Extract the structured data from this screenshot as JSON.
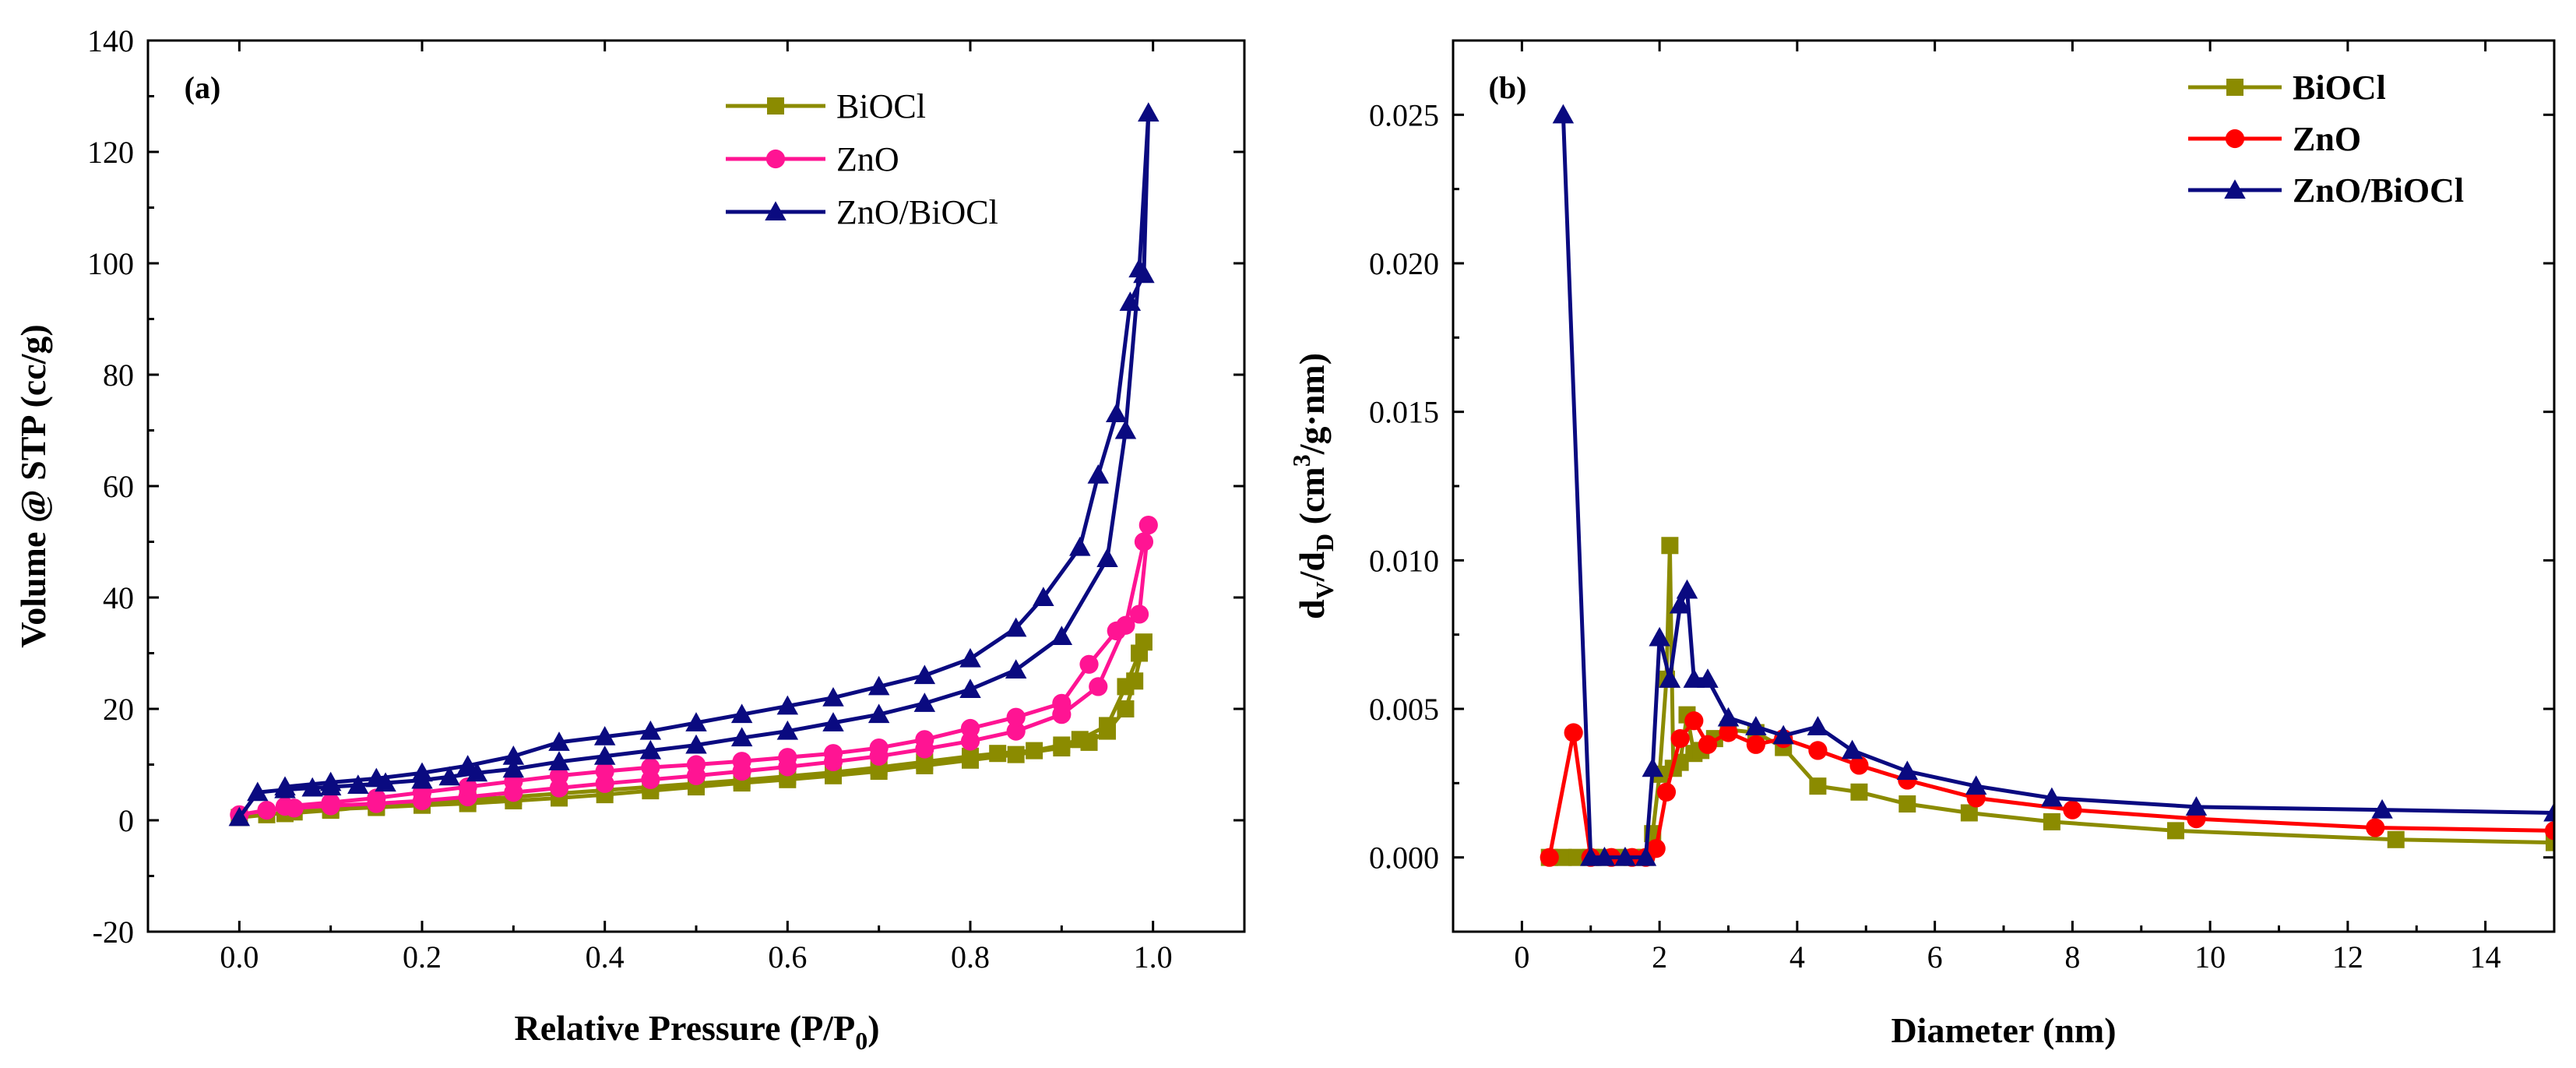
{
  "chart_data": [
    {
      "type": "line",
      "panel_label": "(a)",
      "xlabel": "Relative Pressure (P/P",
      "xlabel_sub": "0",
      "xlabel_end": ")",
      "ylabel": "Volume @ STP (cc/g)",
      "xlim": [
        -0.1,
        1.1
      ],
      "ylim": [
        -20,
        140
      ],
      "xticks": [
        0.0,
        0.2,
        0.4,
        0.6,
        0.8,
        1.0
      ],
      "xtick_labels": [
        "0.0",
        "0.2",
        "0.4",
        "0.6",
        "0.8",
        "1.0"
      ],
      "yticks": [
        -20,
        0,
        20,
        40,
        60,
        80,
        100,
        120,
        140
      ],
      "ytick_labels": [
        "-20",
        "0",
        "20",
        "40",
        "60",
        "80",
        "100",
        "120",
        "140"
      ],
      "legend_position": "top-right",
      "series": [
        {
          "name": "BiOCl",
          "color": "#8B8B00",
          "marker": "square",
          "x": [
            0.0,
            0.03,
            0.06,
            0.1,
            0.15,
            0.2,
            0.25,
            0.3,
            0.35,
            0.4,
            0.45,
            0.5,
            0.55,
            0.6,
            0.65,
            0.7,
            0.75,
            0.8,
            0.85,
            0.9,
            0.93,
            0.95,
            0.97,
            0.98,
            0.99,
            0.985,
            0.97,
            0.95,
            0.92,
            0.9,
            0.87,
            0.83,
            0.8,
            0.75,
            0.7,
            0.65,
            0.6,
            0.55,
            0.5,
            0.45,
            0.4,
            0.35,
            0.3,
            0.25,
            0.2,
            0.15,
            0.1,
            0.05
          ],
          "y": [
            0.5,
            1.0,
            1.5,
            2.0,
            2.3,
            2.7,
            3.0,
            3.5,
            4.0,
            4.6,
            5.3,
            6.0,
            6.7,
            7.3,
            8.0,
            8.8,
            9.8,
            10.8,
            11.8,
            13.0,
            14.0,
            16.0,
            20.0,
            25.0,
            32.0,
            30.0,
            24.0,
            17.0,
            14.5,
            13.5,
            12.5,
            12.0,
            11.5,
            10.5,
            9.5,
            8.6,
            7.9,
            7.2,
            6.6,
            6.0,
            5.4,
            4.8,
            4.2,
            3.7,
            3.1,
            2.5,
            1.8,
            1.2
          ]
        },
        {
          "name": "ZnO",
          "color": "#FF1493",
          "marker": "circle",
          "x": [
            0.0,
            0.03,
            0.06,
            0.1,
            0.15,
            0.2,
            0.25,
            0.3,
            0.35,
            0.4,
            0.45,
            0.5,
            0.55,
            0.6,
            0.65,
            0.7,
            0.75,
            0.8,
            0.85,
            0.9,
            0.94,
            0.97,
            0.99,
            0.995,
            0.985,
            0.96,
            0.93,
            0.9,
            0.85,
            0.8,
            0.75,
            0.7,
            0.65,
            0.6,
            0.55,
            0.5,
            0.45,
            0.4,
            0.35,
            0.3,
            0.25,
            0.2,
            0.15,
            0.1,
            0.05
          ],
          "y": [
            1.0,
            1.8,
            2.2,
            2.6,
            3.0,
            3.5,
            4.2,
            5.0,
            5.8,
            6.6,
            7.3,
            8.0,
            8.8,
            9.6,
            10.5,
            11.5,
            12.8,
            14.2,
            16.0,
            19.0,
            24.0,
            35.0,
            50.0,
            53.0,
            37.0,
            34.0,
            28.0,
            21.0,
            18.5,
            16.5,
            14.5,
            13.0,
            12.0,
            11.3,
            10.6,
            10.0,
            9.5,
            8.8,
            8.0,
            7.0,
            6.0,
            5.0,
            4.0,
            3.2,
            2.5
          ]
        },
        {
          "name": "ZnO/BiOCl",
          "color": "#0A0A80",
          "marker": "triangle",
          "x": [
            0.0,
            0.02,
            0.05,
            0.08,
            0.1,
            0.13,
            0.16,
            0.2,
            0.23,
            0.26,
            0.3,
            0.35,
            0.4,
            0.45,
            0.5,
            0.55,
            0.6,
            0.65,
            0.7,
            0.75,
            0.8,
            0.85,
            0.9,
            0.95,
            0.97,
            0.985,
            0.995,
            0.99,
            0.975,
            0.96,
            0.94,
            0.92,
            0.88,
            0.85,
            0.8,
            0.75,
            0.7,
            0.65,
            0.6,
            0.55,
            0.5,
            0.45,
            0.4,
            0.35,
            0.3,
            0.25,
            0.2,
            0.15,
            0.1,
            0.05
          ],
          "y": [
            0.5,
            5.0,
            5.5,
            5.8,
            6.0,
            6.3,
            6.7,
            7.2,
            7.8,
            8.5,
            9.2,
            10.5,
            11.5,
            12.5,
            13.5,
            14.8,
            16.0,
            17.5,
            19.0,
            21.0,
            23.5,
            27.0,
            33.0,
            47.0,
            70.0,
            99.0,
            127.0,
            98.0,
            93.0,
            73.0,
            62.0,
            49.0,
            40.0,
            34.5,
            29.0,
            26.0,
            24.0,
            22.0,
            20.5,
            19.0,
            17.5,
            16.0,
            15.0,
            14.0,
            11.5,
            9.8,
            8.5,
            7.5,
            6.8,
            6.0
          ]
        }
      ]
    },
    {
      "type": "line",
      "panel_label": "(b)",
      "xlabel": "Diameter (nm)",
      "ylabel_parts": [
        "d",
        "V",
        "/d",
        "D",
        " (cm",
        "3",
        "/g·nm)"
      ],
      "xlim": [
        -1.0,
        15.0
      ],
      "ylim": [
        -0.0025,
        0.0275
      ],
      "xticks": [
        0,
        2,
        4,
        6,
        8,
        10,
        12,
        14
      ],
      "xtick_labels": [
        "0",
        "2",
        "4",
        "6",
        "8",
        "10",
        "12",
        "14"
      ],
      "yticks": [
        0.0,
        0.005,
        0.01,
        0.015,
        0.02,
        0.025
      ],
      "ytick_labels": [
        "0.000",
        "0.005",
        "0.010",
        "0.015",
        "0.020",
        "0.025"
      ],
      "legend_position": "top-right",
      "series": [
        {
          "name": "BiOCl",
          "color": "#8B8B00",
          "marker": "square",
          "x": [
            0.4,
            0.6,
            0.8,
            1.0,
            1.2,
            1.4,
            1.6,
            1.8,
            1.9,
            2.0,
            2.1,
            2.15,
            2.2,
            2.3,
            2.4,
            2.5,
            2.6,
            2.8,
            3.0,
            3.4,
            3.8,
            4.3,
            4.9,
            5.6,
            6.5,
            7.7,
            9.5,
            12.7,
            15.0
          ],
          "y": [
            0.0,
            0.0,
            0.0,
            0.0,
            0.0,
            0.0,
            0.0,
            0.0,
            0.0008,
            0.0028,
            0.006,
            0.0105,
            0.003,
            0.0032,
            0.0048,
            0.0035,
            0.0036,
            0.004,
            0.0043,
            0.0042,
            0.0037,
            0.0024,
            0.0022,
            0.0018,
            0.0015,
            0.0012,
            0.0009,
            0.0006,
            0.0005
          ]
        },
        {
          "name": "ZnO",
          "color": "#FF0000",
          "marker": "circle",
          "x": [
            0.4,
            0.75,
            1.0,
            1.3,
            1.6,
            1.8,
            1.95,
            2.1,
            2.3,
            2.5,
            2.7,
            3.0,
            3.4,
            3.8,
            4.3,
            4.9,
            5.6,
            6.6,
            8.0,
            9.8,
            12.4,
            15.0
          ],
          "y": [
            0.0,
            0.0042,
            0.0,
            0.0,
            0.0,
            0.0,
            0.0003,
            0.0022,
            0.004,
            0.0046,
            0.0038,
            0.0042,
            0.0038,
            0.004,
            0.0036,
            0.0031,
            0.0026,
            0.002,
            0.0016,
            0.0013,
            0.001,
            0.0009
          ]
        },
        {
          "name": "ZnO/BiOCl",
          "color": "#0A0A80",
          "marker": "triangle",
          "x": [
            0.6,
            1.0,
            1.2,
            1.5,
            1.8,
            1.9,
            2.0,
            2.15,
            2.3,
            2.4,
            2.5,
            2.7,
            3.0,
            3.4,
            3.8,
            4.3,
            4.8,
            5.6,
            6.6,
            7.7,
            9.8,
            12.5,
            15.0
          ],
          "y": [
            0.025,
            0.0,
            0.0,
            0.0,
            0.0,
            0.003,
            0.0074,
            0.006,
            0.0085,
            0.009,
            0.006,
            0.006,
            0.0047,
            0.0044,
            0.0041,
            0.0044,
            0.0036,
            0.0029,
            0.0024,
            0.002,
            0.0017,
            0.0016,
            0.0015
          ]
        }
      ]
    }
  ]
}
